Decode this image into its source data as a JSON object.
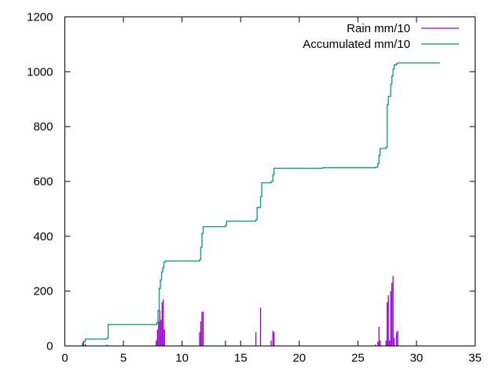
{
  "chart_data": {
    "type": "bar+line",
    "title": "",
    "xlabel": "",
    "ylabel": "",
    "xlim": [
      0,
      35
    ],
    "ylim": [
      0,
      1200
    ],
    "x_ticks": [
      "0",
      "5",
      "10",
      "15",
      "20",
      "25",
      "30",
      "35"
    ],
    "y_ticks": [
      "0",
      "200",
      "400",
      "600",
      "800",
      "1000",
      "1200"
    ],
    "grid": false,
    "legend_position": "top-right",
    "series": [
      {
        "name": "Rain mm/10",
        "type": "impulse",
        "color": "#9400d3",
        "points": [
          [
            1.5,
            10
          ],
          [
            1.6,
            20
          ],
          [
            1.75,
            8
          ],
          [
            3.6,
            5
          ],
          [
            7.8,
            20
          ],
          [
            7.9,
            60
          ],
          [
            8.0,
            90
          ],
          [
            8.1,
            130
          ],
          [
            8.2,
            95
          ],
          [
            8.3,
            160
          ],
          [
            8.4,
            170
          ],
          [
            8.5,
            60
          ],
          [
            11.5,
            50
          ],
          [
            11.6,
            90
          ],
          [
            11.7,
            125
          ],
          [
            11.8,
            125
          ],
          [
            13.7,
            20
          ],
          [
            16.3,
            50
          ],
          [
            16.7,
            140
          ],
          [
            17.6,
            20
          ],
          [
            17.75,
            55
          ],
          [
            17.85,
            50
          ],
          [
            26.5,
            5
          ],
          [
            26.7,
            15
          ],
          [
            26.8,
            70
          ],
          [
            26.9,
            20
          ],
          [
            27.4,
            20
          ],
          [
            27.5,
            160
          ],
          [
            27.6,
            185
          ],
          [
            27.7,
            20
          ],
          [
            27.8,
            200
          ],
          [
            27.9,
            230
          ],
          [
            28.0,
            255
          ],
          [
            28.1,
            30
          ],
          [
            28.3,
            50
          ],
          [
            28.4,
            55
          ]
        ]
      },
      {
        "name": "Accumulated mm/10",
        "type": "step",
        "color": "#009e73",
        "points": [
          [
            1.4,
            0
          ],
          [
            1.5,
            10
          ],
          [
            1.6,
            15
          ],
          [
            1.75,
            25
          ],
          [
            3.6,
            30
          ],
          [
            3.7,
            78
          ],
          [
            7.7,
            78
          ],
          [
            7.85,
            85
          ],
          [
            7.95,
            130
          ],
          [
            8.05,
            210
          ],
          [
            8.15,
            240
          ],
          [
            8.25,
            270
          ],
          [
            8.35,
            285
          ],
          [
            8.45,
            305
          ],
          [
            8.55,
            310
          ],
          [
            11.5,
            315
          ],
          [
            11.6,
            360
          ],
          [
            11.7,
            410
          ],
          [
            11.8,
            435
          ],
          [
            13.7,
            440
          ],
          [
            13.8,
            455
          ],
          [
            16.3,
            460
          ],
          [
            16.4,
            505
          ],
          [
            16.7,
            545
          ],
          [
            16.8,
            595
          ],
          [
            17.6,
            600
          ],
          [
            17.75,
            625
          ],
          [
            17.85,
            648
          ],
          [
            22.0,
            650
          ],
          [
            26.5,
            652
          ],
          [
            26.7,
            665
          ],
          [
            26.8,
            695
          ],
          [
            26.9,
            720
          ],
          [
            27.4,
            725
          ],
          [
            27.5,
            880
          ],
          [
            27.6,
            910
          ],
          [
            27.8,
            955
          ],
          [
            27.9,
            985
          ],
          [
            28.0,
            1010
          ],
          [
            28.1,
            1025
          ],
          [
            28.3,
            1030
          ],
          [
            28.4,
            1032
          ],
          [
            32.0,
            1032
          ]
        ]
      }
    ]
  }
}
